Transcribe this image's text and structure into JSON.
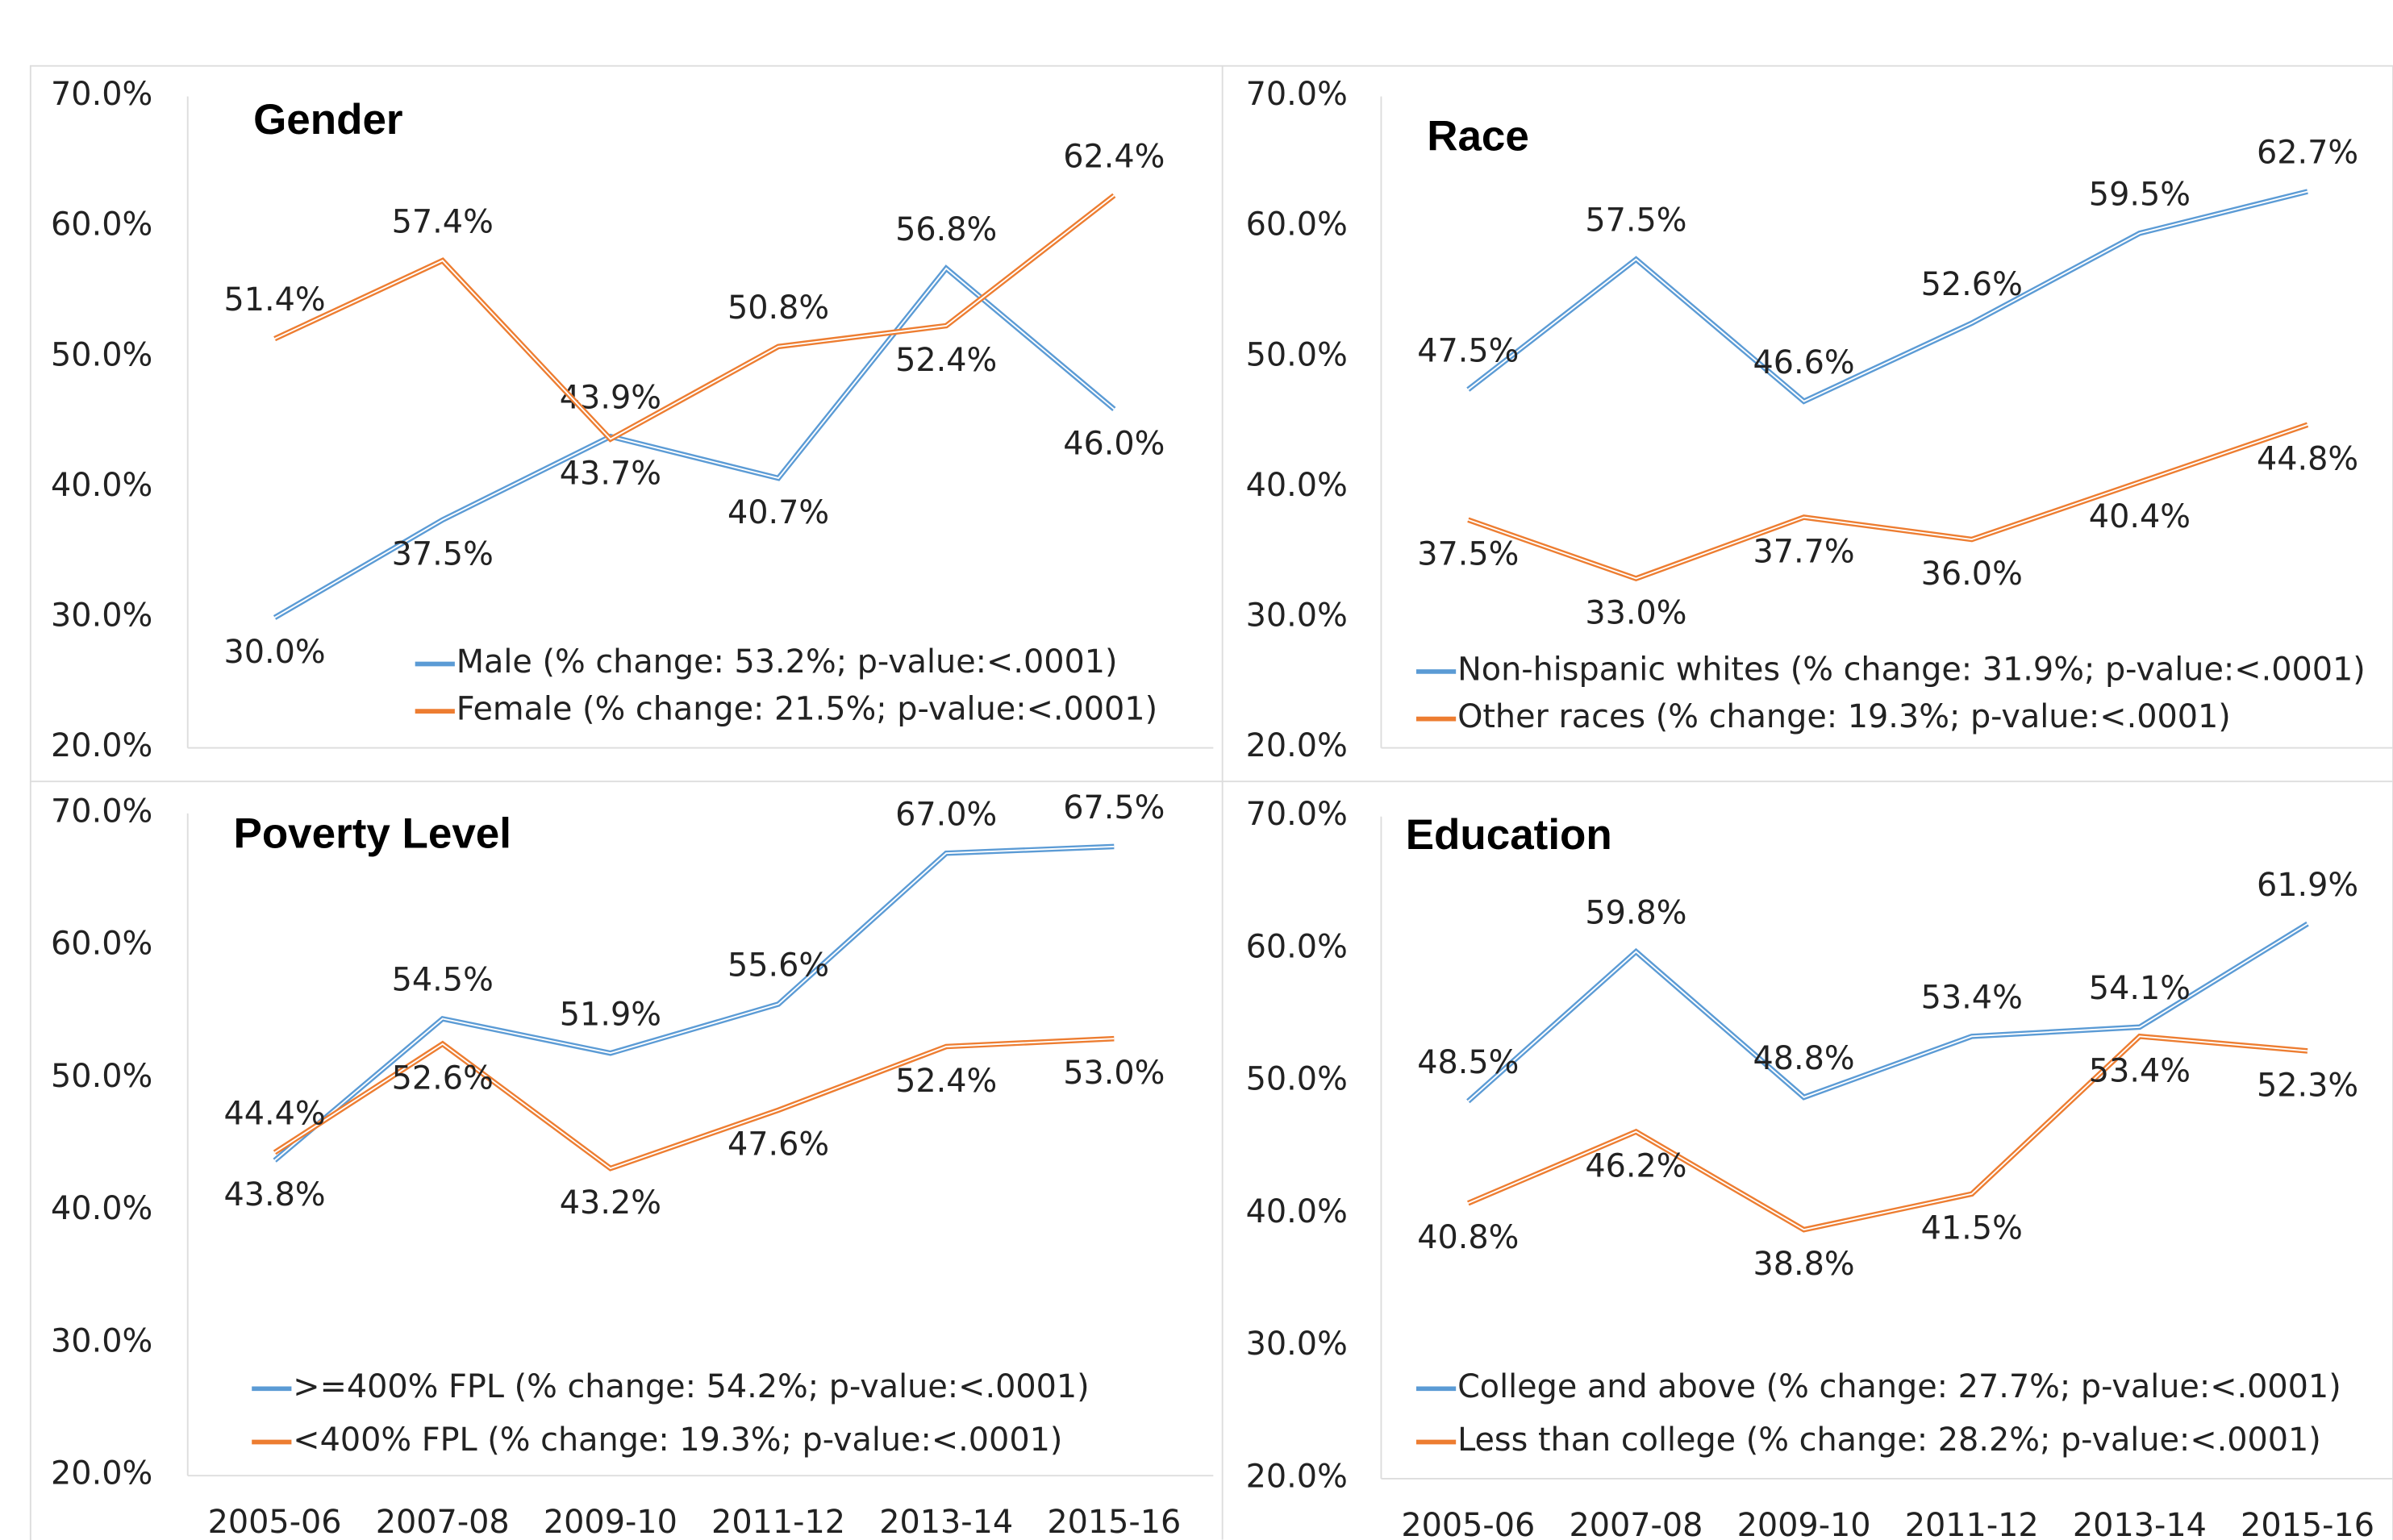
{
  "chart_data": [
    {
      "type": "line",
      "title": "Gender",
      "series": [
        {
          "name": "Male (% change: 53.2%; p-value:<.0001)",
          "color": "#5b9bd5",
          "values": [
            30.0,
            37.5,
            43.9,
            40.7,
            56.8,
            46.0
          ],
          "value_labels": [
            "30.0%",
            "37.5%",
            "43.9%",
            "40.7%",
            "56.8%",
            "46.0%"
          ]
        },
        {
          "name": "Female (% change: 21.5%; p-value:<.0001)",
          "color": "#ed7d31",
          "values": [
            51.4,
            57.4,
            43.7,
            50.8,
            52.4,
            62.4
          ],
          "value_labels": [
            "51.4%",
            "57.4%",
            "43.7%",
            "50.8%",
            "52.4%",
            "62.4%"
          ]
        }
      ],
      "ylim": [
        20,
        70
      ],
      "yticks": [
        {
          "value": 20,
          "label": "20.0%"
        },
        {
          "value": 30,
          "label": "30.0%"
        },
        {
          "value": 40,
          "label": "40.0%"
        },
        {
          "value": 50,
          "label": "50.0%"
        },
        {
          "value": 60,
          "label": "60.0%"
        },
        {
          "value": 70,
          "label": "70.0%"
        }
      ]
    },
    {
      "type": "line",
      "title": "Race",
      "series": [
        {
          "name": "Non-hispanic whites (% change: 31.9%; p-value:<.0001)",
          "color": "#5b9bd5",
          "values": [
            47.5,
            57.5,
            46.6,
            52.6,
            59.5,
            62.7
          ],
          "value_labels": [
            "47.5%",
            "57.5%",
            "46.6%",
            "52.6%",
            "59.5%",
            "62.7%"
          ]
        },
        {
          "name": "Other races (% change: 19.3%; p-value:<.0001)",
          "color": "#ed7d31",
          "values": [
            37.5,
            33.0,
            37.7,
            36.0,
            40.4,
            44.8
          ],
          "value_labels": [
            "37.5%",
            "33.0%",
            "37.7%",
            "36.0%",
            "40.4%",
            "44.8%"
          ]
        }
      ],
      "ylim": [
        20,
        70
      ],
      "yticks": [
        {
          "value": 20,
          "label": "20.0%"
        },
        {
          "value": 30,
          "label": "30.0%"
        },
        {
          "value": 40,
          "label": "40.0%"
        },
        {
          "value": 50,
          "label": "50.0%"
        },
        {
          "value": 60,
          "label": "60.0%"
        },
        {
          "value": 70,
          "label": "70.0%"
        }
      ]
    },
    {
      "type": "line",
      "title": "Poverty Level",
      "categories": [
        "2005-06",
        "2007-08",
        "2009-10",
        "2011-12",
        "2013-14",
        "2015-16"
      ],
      "series": [
        {
          "name": ">=400% FPL (% change: 54.2%; p-value:<.0001)",
          "color": "#5b9bd5",
          "values": [
            43.8,
            54.5,
            51.9,
            55.6,
            67.0,
            67.5
          ],
          "value_labels": [
            "43.8%",
            "54.5%",
            "51.9%",
            "55.6%",
            "67.0%",
            "67.5%"
          ]
        },
        {
          "name": "<400% FPL (% change: 19.3%; p-value:<.0001)",
          "color": "#ed7d31",
          "values": [
            44.4,
            52.6,
            43.2,
            47.6,
            52.4,
            53.0
          ],
          "value_labels": [
            "44.4%",
            "52.6%",
            "43.2%",
            "47.6%",
            "52.4%",
            "53.0%"
          ]
        }
      ],
      "ylim": [
        20,
        70
      ],
      "yticks": [
        {
          "value": 20,
          "label": "20.0%"
        },
        {
          "value": 30,
          "label": "30.0%"
        },
        {
          "value": 40,
          "label": "40.0%"
        },
        {
          "value": 50,
          "label": "50.0%"
        },
        {
          "value": 60,
          "label": "60.0%"
        },
        {
          "value": 70,
          "label": "70.0%"
        }
      ]
    },
    {
      "type": "line",
      "title": "Education",
      "categories": [
        "2005-06",
        "2007-08",
        "2009-10",
        "2011-12",
        "2013-14",
        "2015-16"
      ],
      "series": [
        {
          "name": "College and above (% change: 27.7%; p-value:<.0001)",
          "color": "#5b9bd5",
          "values": [
            48.5,
            59.8,
            48.8,
            53.4,
            54.1,
            61.9
          ],
          "value_labels": [
            "48.5%",
            "59.8%",
            "48.8%",
            "53.4%",
            "54.1%",
            "61.9%"
          ]
        },
        {
          "name": "Less than college (% change: 28.2%; p-value:<.0001)",
          "color": "#ed7d31",
          "values": [
            40.8,
            46.2,
            38.8,
            41.5,
            53.4,
            52.3
          ],
          "value_labels": [
            "40.8%",
            "46.2%",
            "38.8%",
            "41.5%",
            "53.4%",
            "52.3%"
          ]
        }
      ],
      "ylim": [
        20,
        70
      ],
      "yticks": [
        {
          "value": 20,
          "label": "20.0%"
        },
        {
          "value": 30,
          "label": "30.0%"
        },
        {
          "value": 40,
          "label": "40.0%"
        },
        {
          "value": 50,
          "label": "50.0%"
        },
        {
          "value": 60,
          "label": "60.0%"
        },
        {
          "value": 70,
          "label": "70.0%"
        }
      ]
    }
  ]
}
